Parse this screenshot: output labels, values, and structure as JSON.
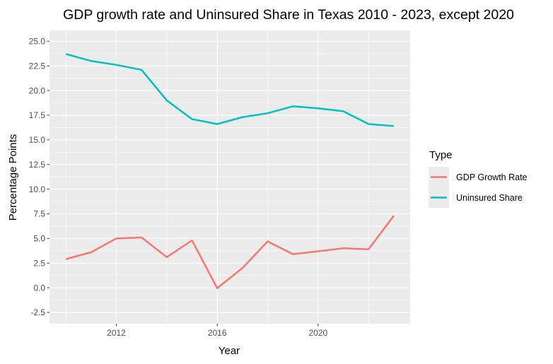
{
  "chart_data": {
    "type": "line",
    "title": "GDP growth rate and Uninsured Share in Texas 2010 - 2023, except 2020",
    "xlabel": "Year",
    "ylabel": "Percentage Points",
    "xlim": [
      2009.35,
      2023.65
    ],
    "ylim": [
      -3.65,
      26.1
    ],
    "x_ticks": [
      2012,
      2016,
      2020
    ],
    "x_tick_labels": [
      "2012",
      "2016",
      "2020"
    ],
    "y_ticks": [
      -2.5,
      0,
      2.5,
      5,
      7.5,
      10,
      12.5,
      15,
      17.5,
      20,
      22.5,
      25
    ],
    "y_tick_labels": [
      "-2.5",
      "0.0",
      "2.5",
      "5.0",
      "7.5",
      "10.0",
      "12.5",
      "15.0",
      "17.5",
      "20.0",
      "22.5",
      "25.0"
    ],
    "grid": true,
    "legend": {
      "title": "Type",
      "position": "right"
    },
    "series": [
      {
        "name": "GDP Growth Rate",
        "color": "#f8766d",
        "x": [
          2010,
          2011,
          2012,
          2013,
          2014,
          2015,
          2016,
          2017,
          2018,
          2019,
          2020,
          2021,
          2022,
          2023
        ],
        "y": [
          2.9,
          3.6,
          5.0,
          5.1,
          3.1,
          4.8,
          -0.05,
          2.0,
          4.7,
          3.4,
          3.7,
          4.0,
          3.9,
          7.3
        ]
      },
      {
        "name": "Uninsured Share",
        "color": "#00bfc4",
        "x": [
          2010,
          2011,
          2012,
          2013,
          2014,
          2015,
          2016,
          2017,
          2018,
          2019,
          2020,
          2021,
          2022,
          2023
        ],
        "y": [
          23.7,
          23.0,
          22.6,
          22.1,
          19.0,
          17.1,
          16.6,
          17.3,
          17.7,
          18.4,
          18.2,
          17.9,
          16.6,
          16.4
        ]
      }
    ]
  }
}
